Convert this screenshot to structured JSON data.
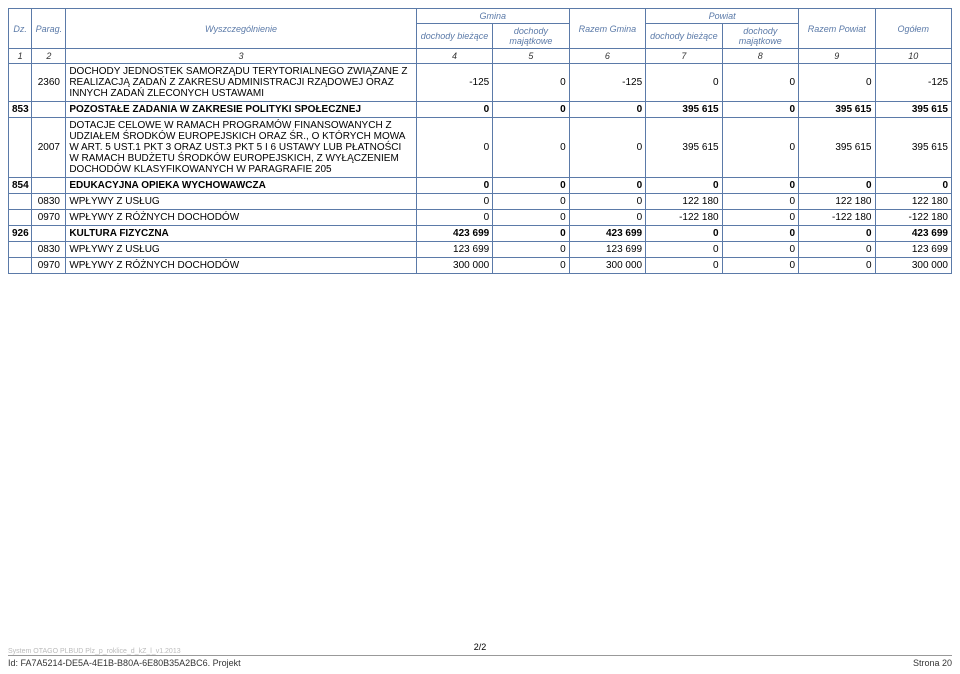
{
  "header": {
    "dz": "Dz.",
    "parag": "Parag.",
    "wys": "Wyszczególnienie",
    "gmina": "Gmina",
    "powiat": "Powiat",
    "db": "dochody bieżące",
    "dm": "dochody majątkowe",
    "rg": "Razem Gmina",
    "rp": "Razem Powiat",
    "og": "Ogółem"
  },
  "colnums": [
    "1",
    "2",
    "3",
    "4",
    "5",
    "6",
    "7",
    "8",
    "9",
    "10"
  ],
  "rows": [
    {
      "dz": "",
      "par": "2360",
      "wys": "DOCHODY JEDNOSTEK SAMORZĄDU TERYTORIALNEGO ZWIĄZANE Z REALIZACJĄ ZADAŃ Z ZAKRESU ADMINISTRACJI RZĄDOWEJ ORAZ INNYCH ZADAŃ ZLECONYCH USTAWAMI",
      "c4": "-125",
      "c5": "0",
      "c6": "-125",
      "c7": "0",
      "c8": "0",
      "c9": "0",
      "c10": "-125",
      "bold": false
    },
    {
      "dz": "853",
      "par": "",
      "wys": "POZOSTAŁE ZADANIA W ZAKRESIE POLITYKI SPOŁECZNEJ",
      "c4": "0",
      "c5": "0",
      "c6": "0",
      "c7": "395 615",
      "c8": "0",
      "c9": "395 615",
      "c10": "395 615",
      "bold": true
    },
    {
      "dz": "",
      "par": "2007",
      "wys": "DOTACJE CELOWE W RAMACH PROGRAMÓW FINANSOWANYCH Z UDZIAŁEM ŚRODKÓW EUROPEJSKICH ORAZ ŚR., O KTÓRYCH MOWA W ART. 5 UST.1 PKT 3 ORAZ UST.3 PKT 5 I 6 USTAWY LUB PŁATNOŚCI W RAMACH BUDŻETU ŚRODKÓW EUROPEJSKICH, Z WYŁĄCZENIEM DOCHODÓW KLASYFIKOWANYCH W PARAGRAFIE 205",
      "c4": "0",
      "c5": "0",
      "c6": "0",
      "c7": "395 615",
      "c8": "0",
      "c9": "395 615",
      "c10": "395 615",
      "bold": false
    },
    {
      "dz": "854",
      "par": "",
      "wys": "EDUKACYJNA OPIEKA WYCHOWAWCZA",
      "c4": "0",
      "c5": "0",
      "c6": "0",
      "c7": "0",
      "c8": "0",
      "c9": "0",
      "c10": "0",
      "bold": true
    },
    {
      "dz": "",
      "par": "0830",
      "wys": "WPŁYWY Z USŁUG",
      "c4": "0",
      "c5": "0",
      "c6": "0",
      "c7": "122 180",
      "c8": "0",
      "c9": "122 180",
      "c10": "122 180",
      "bold": false
    },
    {
      "dz": "",
      "par": "0970",
      "wys": "WPŁYWY Z RÓŻNYCH DOCHODÓW",
      "c4": "0",
      "c5": "0",
      "c6": "0",
      "c7": "-122 180",
      "c8": "0",
      "c9": "-122 180",
      "c10": "-122 180",
      "bold": false
    },
    {
      "dz": "926",
      "par": "",
      "wys": "KULTURA FIZYCZNA",
      "c4": "423 699",
      "c5": "0",
      "c6": "423 699",
      "c7": "0",
      "c8": "0",
      "c9": "0",
      "c10": "423 699",
      "bold": true
    },
    {
      "dz": "",
      "par": "0830",
      "wys": "WPŁYWY Z USŁUG",
      "c4": "123 699",
      "c5": "0",
      "c6": "123 699",
      "c7": "0",
      "c8": "0",
      "c9": "0",
      "c10": "123 699",
      "bold": false
    },
    {
      "dz": "",
      "par": "0970",
      "wys": "WPŁYWY Z RÓŻNYCH DOCHODÓW",
      "c4": "300 000",
      "c5": "0",
      "c6": "300 000",
      "c7": "0",
      "c8": "0",
      "c9": "0",
      "c10": "300 000",
      "bold": false
    }
  ],
  "footer": {
    "tiny": "System OTAGO  PLBUD  Plz_p_roklice_d_kZ_l_v1.2013",
    "pageno": "2/2",
    "id": "Id: FA7A5214-DE5A-4E1B-B80A-6E80B35A2BC6. Projekt",
    "strona": "Strona 20"
  },
  "style": {
    "border_color": "#5b7aa8",
    "header_text_color": "#5b7aa8",
    "body_font_size": 10,
    "header_font_size": 9
  }
}
